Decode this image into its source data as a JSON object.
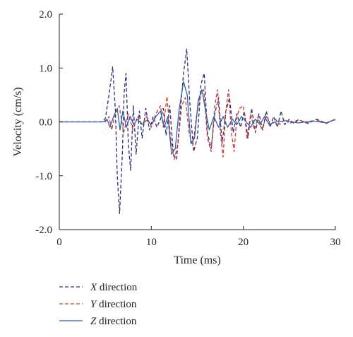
{
  "chart_data": {
    "type": "line",
    "xlabel": "Time (ms)",
    "ylabel": "Velocity (cm/s)",
    "xlim": [
      0,
      30
    ],
    "ylim": [
      -2.0,
      2.0
    ],
    "x_ticks": [
      0,
      10,
      20,
      30
    ],
    "x_tick_labels": [
      "0",
      "10",
      "20",
      "30"
    ],
    "y_ticks": [
      2.0,
      1.0,
      0.0,
      -1.0,
      -2.0
    ],
    "y_tick_labels": [
      "2.0",
      "1.0",
      "0.0",
      "-1.0",
      "-2.0"
    ],
    "grid": false,
    "legend_position": "bottom-left, below plot",
    "series": [
      {
        "name": "X direction",
        "legend_var": "X",
        "legend_text": " direction",
        "color": "#2b2f73",
        "style": "dashed",
        "points": [
          [
            0,
            0
          ],
          [
            4.6,
            0
          ],
          [
            5.0,
            0.06
          ],
          [
            5.4,
            0.5
          ],
          [
            5.8,
            1.02
          ],
          [
            6.1,
            0.2
          ],
          [
            6.3,
            -1.0
          ],
          [
            6.55,
            -1.7
          ],
          [
            6.85,
            -0.6
          ],
          [
            7.05,
            0.55
          ],
          [
            7.25,
            0.9
          ],
          [
            7.5,
            -0.4
          ],
          [
            7.75,
            -0.9
          ],
          [
            8.05,
            0.3
          ],
          [
            8.35,
            -0.6
          ],
          [
            8.7,
            0.2
          ],
          [
            9.0,
            -0.3
          ],
          [
            9.4,
            0.25
          ],
          [
            9.8,
            -0.15
          ],
          [
            10.2,
            0.1
          ],
          [
            10.6,
            -0.1
          ],
          [
            11.0,
            0.05
          ],
          [
            11.3,
            0.25
          ],
          [
            11.6,
            -0.25
          ],
          [
            12.0,
            0.3
          ],
          [
            12.4,
            -0.6
          ],
          [
            12.75,
            -0.7
          ],
          [
            13.15,
            0.2
          ],
          [
            13.5,
            0.9
          ],
          [
            13.85,
            1.35
          ],
          [
            14.2,
            0.3
          ],
          [
            14.6,
            -0.55
          ],
          [
            15.0,
            -0.3
          ],
          [
            15.4,
            0.7
          ],
          [
            15.75,
            0.9
          ],
          [
            16.1,
            -0.2
          ],
          [
            16.5,
            -0.5
          ],
          [
            16.9,
            0.15
          ],
          [
            17.3,
            0.45
          ],
          [
            17.7,
            -0.4
          ],
          [
            18.1,
            0.2
          ],
          [
            18.5,
            0.45
          ],
          [
            18.9,
            -0.2
          ],
          [
            19.3,
            0.15
          ],
          [
            19.7,
            -0.1
          ],
          [
            20.1,
            0.2
          ],
          [
            20.5,
            -0.3
          ],
          [
            20.9,
            0.25
          ],
          [
            21.3,
            -0.2
          ],
          [
            21.7,
            0.15
          ],
          [
            22.1,
            -0.15
          ],
          [
            22.5,
            0.2
          ],
          [
            22.9,
            -0.1
          ],
          [
            23.3,
            0.1
          ],
          [
            23.7,
            -0.1
          ],
          [
            24.1,
            0.2
          ],
          [
            24.5,
            -0.05
          ],
          [
            25.0,
            0.05
          ],
          [
            25.5,
            -0.03
          ],
          [
            26.0,
            0.04
          ],
          [
            27.0,
            -0.03
          ],
          [
            28.0,
            0.05
          ],
          [
            29.0,
            -0.03
          ],
          [
            30.0,
            0.05
          ]
        ]
      },
      {
        "name": "Y direction",
        "legend_var": "Y",
        "legend_text": " direction",
        "color": "#d23a2a",
        "style": "dashed",
        "points": [
          [
            0,
            0
          ],
          [
            5.0,
            0
          ],
          [
            5.4,
            0.1
          ],
          [
            5.7,
            -0.15
          ],
          [
            6.0,
            0.1
          ],
          [
            6.5,
            0.3
          ],
          [
            7.0,
            -0.2
          ],
          [
            7.5,
            0.15
          ],
          [
            8.0,
            -0.15
          ],
          [
            8.5,
            0.1
          ],
          [
            9.0,
            -0.05
          ],
          [
            9.5,
            0.1
          ],
          [
            10.0,
            -0.1
          ],
          [
            10.5,
            0.15
          ],
          [
            11.0,
            0.3
          ],
          [
            11.3,
            -0.1
          ],
          [
            11.7,
            0.47
          ],
          [
            12.1,
            -0.3
          ],
          [
            12.5,
            -0.7
          ],
          [
            12.9,
            -0.4
          ],
          [
            13.3,
            0.3
          ],
          [
            13.7,
            0.45
          ],
          [
            14.1,
            -0.2
          ],
          [
            14.5,
            -0.45
          ],
          [
            14.9,
            0.1
          ],
          [
            15.3,
            0.5
          ],
          [
            15.7,
            0.6
          ],
          [
            16.1,
            -0.3
          ],
          [
            16.5,
            -0.55
          ],
          [
            16.9,
            0.3
          ],
          [
            17.2,
            0.6
          ],
          [
            17.5,
            -0.2
          ],
          [
            17.8,
            -0.65
          ],
          [
            18.1,
            0.2
          ],
          [
            18.4,
            0.6
          ],
          [
            18.7,
            -0.2
          ],
          [
            19.0,
            -0.55
          ],
          [
            19.3,
            0.1
          ],
          [
            19.6,
            0.25
          ],
          [
            20.0,
            0.3
          ],
          [
            20.4,
            -0.3
          ],
          [
            20.8,
            0.15
          ],
          [
            21.2,
            -0.15
          ],
          [
            21.6,
            0.1
          ],
          [
            22.0,
            -0.15
          ],
          [
            22.5,
            0.1
          ],
          [
            23.0,
            -0.05
          ],
          [
            23.5,
            0.05
          ],
          [
            24.0,
            -0.05
          ],
          [
            24.5,
            0.05
          ],
          [
            25.0,
            -0.03
          ],
          [
            26.0,
            0.04
          ],
          [
            27.0,
            -0.02
          ],
          [
            28.0,
            0.03
          ],
          [
            29.0,
            -0.02
          ],
          [
            30.0,
            0.04
          ]
        ]
      },
      {
        "name": "Z direction",
        "legend_var": "Z",
        "legend_text": " direction",
        "color": "#2e63b0",
        "style": "solid",
        "points": [
          [
            0,
            0
          ],
          [
            4.8,
            0
          ],
          [
            5.2,
            0.05
          ],
          [
            5.5,
            -0.1
          ],
          [
            5.9,
            0.1
          ],
          [
            6.3,
            0.25
          ],
          [
            6.6,
            -0.15
          ],
          [
            6.9,
            0.2
          ],
          [
            7.3,
            -0.1
          ],
          [
            7.7,
            0.1
          ],
          [
            8.1,
            -0.05
          ],
          [
            8.5,
            0.05
          ],
          [
            9.0,
            -0.05
          ],
          [
            9.5,
            0.03
          ],
          [
            10.0,
            -0.05
          ],
          [
            10.5,
            0.1
          ],
          [
            11.0,
            0.2
          ],
          [
            11.4,
            -0.1
          ],
          [
            11.8,
            0.1
          ],
          [
            12.2,
            -0.6
          ],
          [
            12.6,
            -0.5
          ],
          [
            13.0,
            0.2
          ],
          [
            13.5,
            0.75
          ],
          [
            13.9,
            0.5
          ],
          [
            14.3,
            -0.4
          ],
          [
            14.7,
            -0.3
          ],
          [
            15.1,
            0.4
          ],
          [
            15.5,
            0.6
          ],
          [
            15.9,
            0.2
          ],
          [
            16.3,
            -0.15
          ],
          [
            16.8,
            0.1
          ],
          [
            17.3,
            -0.1
          ],
          [
            17.8,
            0.1
          ],
          [
            18.3,
            -0.1
          ],
          [
            18.8,
            0.05
          ],
          [
            19.3,
            -0.05
          ],
          [
            19.8,
            0.1
          ],
          [
            20.3,
            0.0
          ],
          [
            20.8,
            -0.1
          ],
          [
            21.3,
            0.05
          ],
          [
            21.8,
            -0.05
          ],
          [
            22.3,
            0.1
          ],
          [
            22.8,
            -0.05
          ],
          [
            23.5,
            0.0
          ],
          [
            24.5,
            0.02
          ],
          [
            26.0,
            -0.02
          ],
          [
            27.5,
            0.02
          ],
          [
            29.0,
            -0.02
          ],
          [
            30.0,
            0.05
          ]
        ]
      }
    ]
  }
}
